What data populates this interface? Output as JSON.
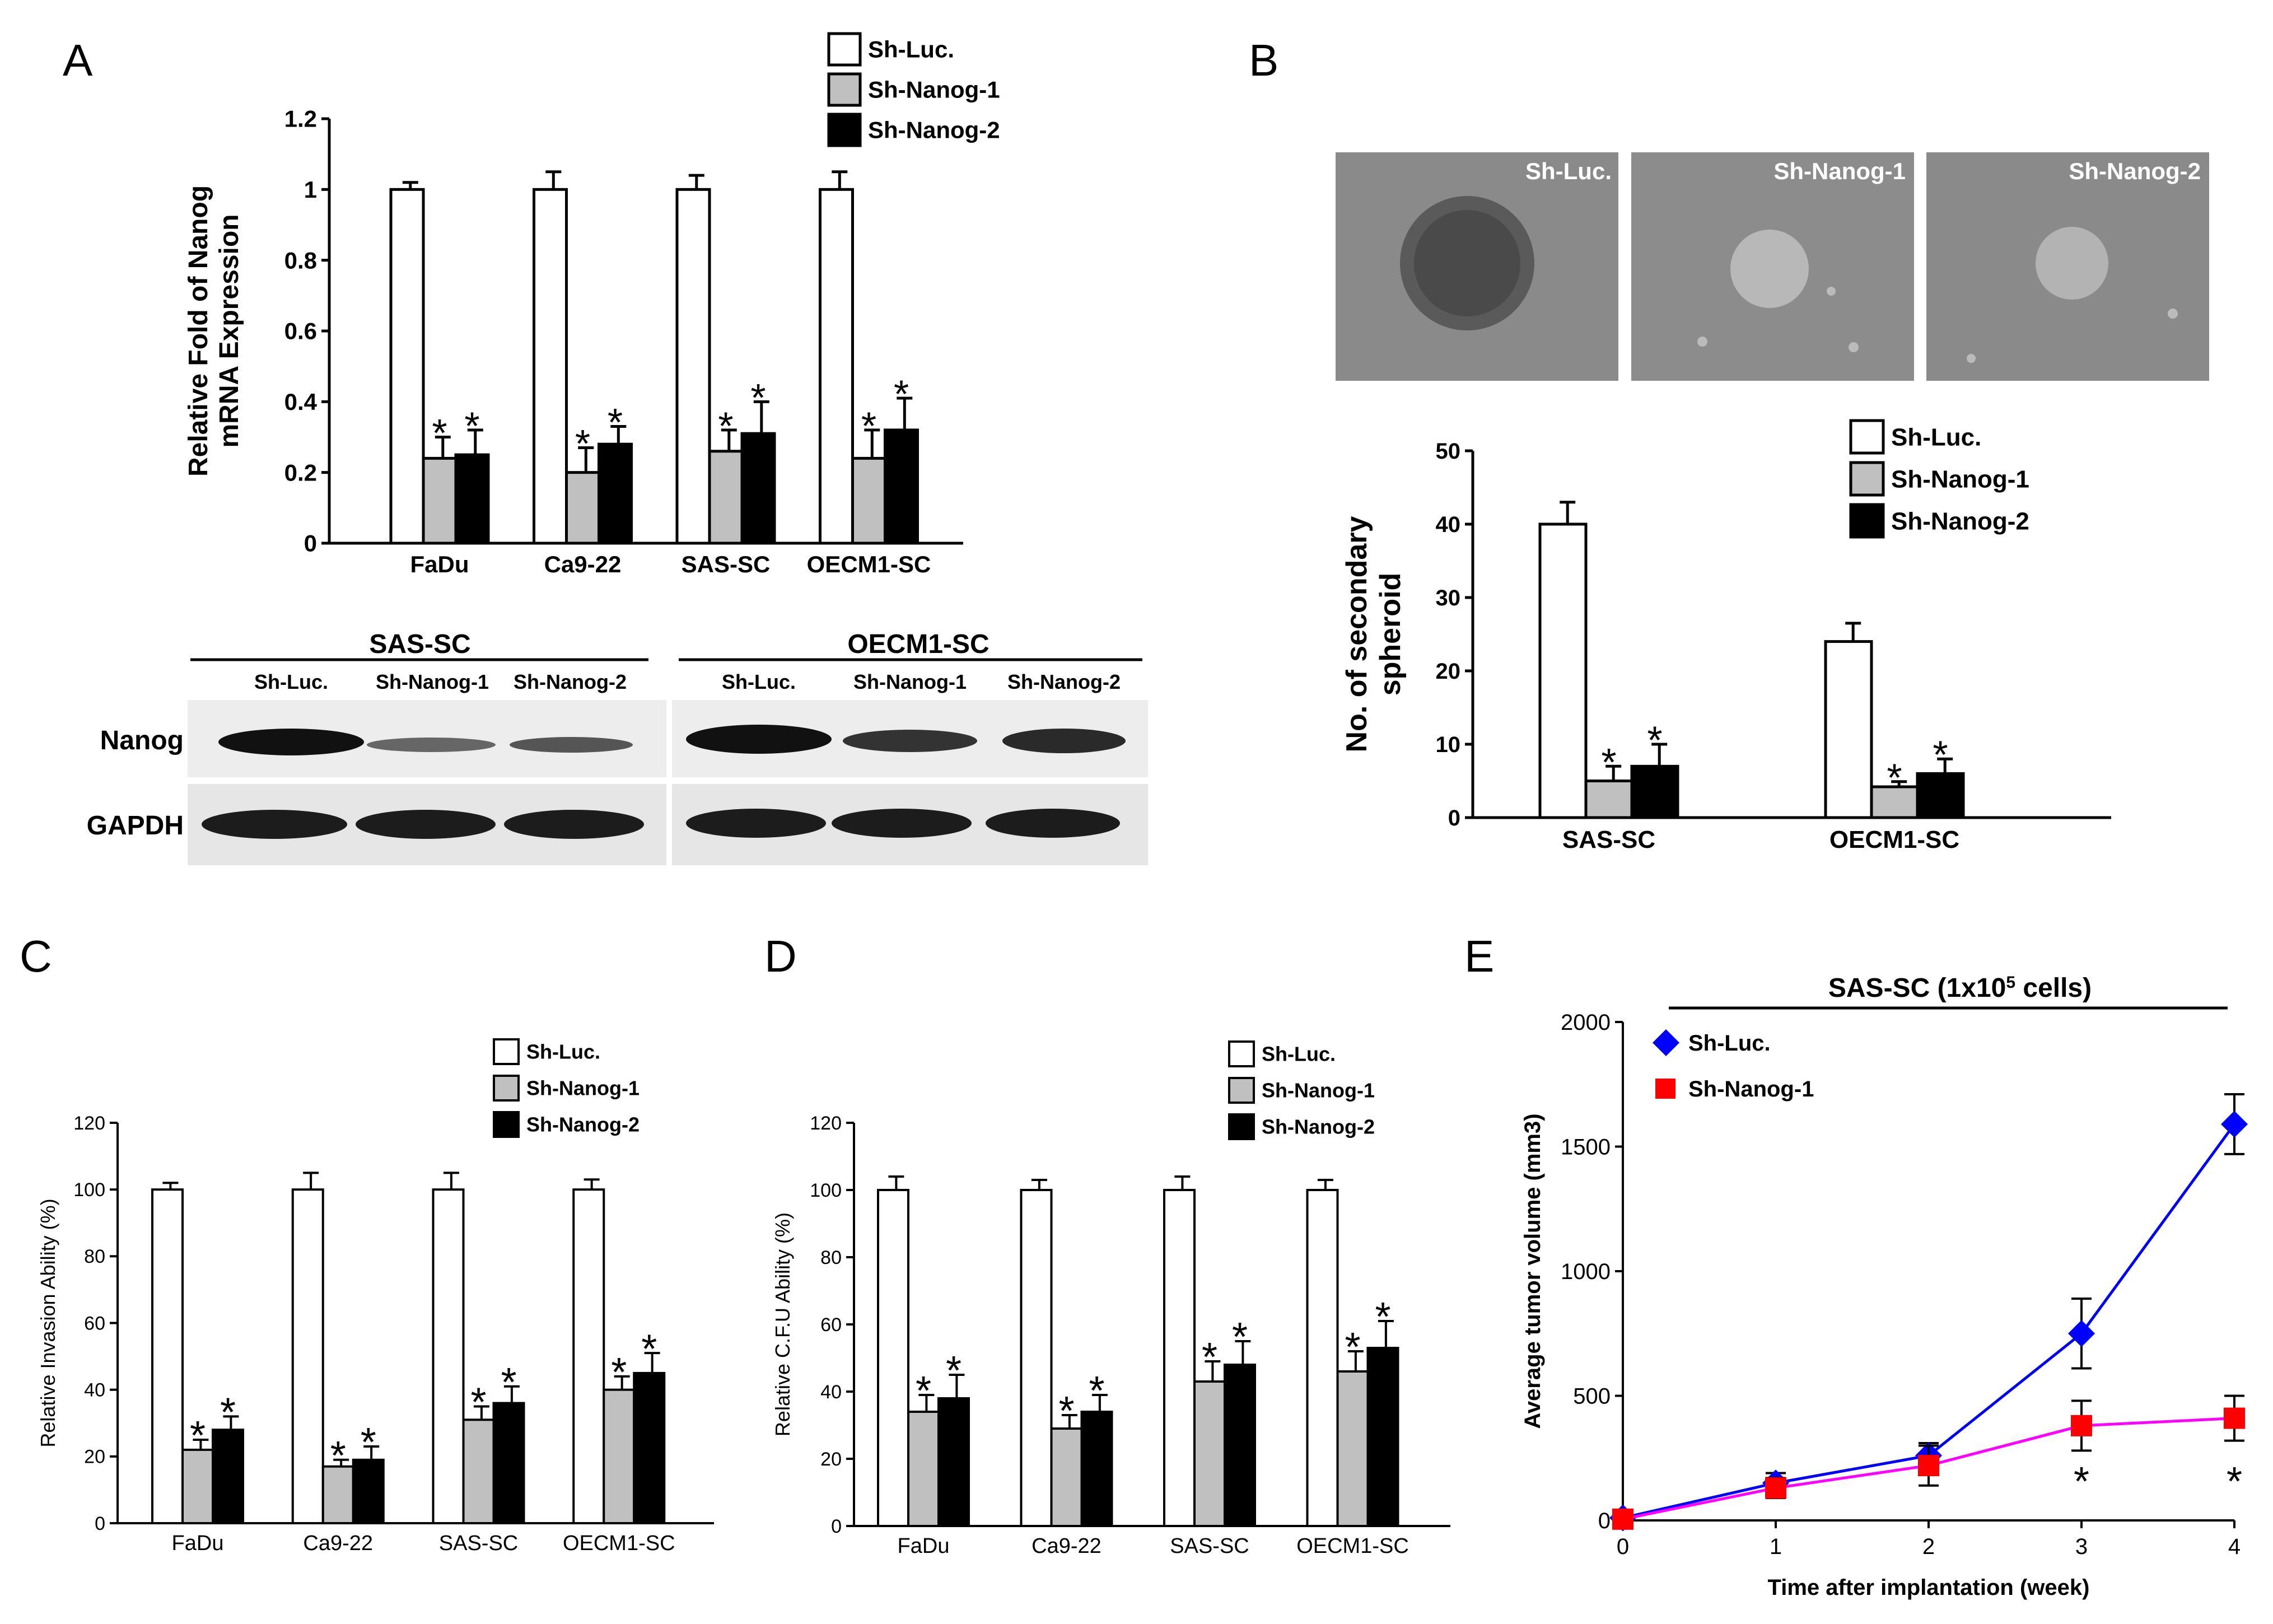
{
  "panel_letters": {
    "a": "A",
    "b": "B",
    "c": "C",
    "d": "D",
    "e": "E"
  },
  "legend3": [
    "Sh-Luc.",
    "Sh-Nanog-1",
    "Sh-Nanog-2"
  ],
  "colors": {
    "sh_luc": "#ffffff",
    "sh_nanog_1": "#c0c0c0",
    "sh_nanog_2": "#000000",
    "line_luc": "#0000ff",
    "line_nanog": "#ff00ff",
    "marker_nanog": "#ff0000"
  },
  "star": "*",
  "western": {
    "groups": [
      "SAS-SC",
      "OECM1-SC"
    ],
    "lanes": [
      "Sh-Luc.",
      "Sh-Nanog-1",
      "Sh-Nanog-2"
    ],
    "rows": [
      "Nanog",
      "GAPDH"
    ]
  },
  "photos": [
    "Sh-Luc.",
    "Sh-Nanog-1",
    "Sh-Nanog-2"
  ],
  "chart_data": [
    {
      "id": "A",
      "type": "bar",
      "categories": [
        "FaDu",
        "Ca9-22",
        "SAS-SC",
        "OECM1-SC"
      ],
      "series": [
        {
          "name": "Sh-Luc.",
          "values": [
            1.0,
            1.0,
            1.0,
            1.0
          ],
          "errors": [
            0.02,
            0.05,
            0.04,
            0.05
          ]
        },
        {
          "name": "Sh-Nanog-1",
          "values": [
            0.24,
            0.2,
            0.26,
            0.24
          ],
          "errors": [
            0.06,
            0.07,
            0.06,
            0.08
          ]
        },
        {
          "name": "Sh-Nanog-2",
          "values": [
            0.25,
            0.28,
            0.31,
            0.32
          ],
          "errors": [
            0.07,
            0.05,
            0.09,
            0.09
          ]
        }
      ],
      "ylabel": [
        "Relative Fold  of Nanog",
        "mRNA Expression"
      ],
      "ylim": [
        0,
        1.2
      ],
      "yticks": [
        "0",
        "0.2",
        "0.4",
        "0.6",
        "0.8",
        "1",
        "1.2"
      ],
      "significant": "Sh-Nanog-1 and Sh-Nanog-2 in every group",
      "legend": "top-right"
    },
    {
      "id": "B",
      "type": "bar",
      "categories": [
        "SAS-SC",
        "OECM1-SC"
      ],
      "series": [
        {
          "name": "Sh-Luc.",
          "values": [
            40,
            24
          ],
          "errors": [
            3,
            2.5
          ]
        },
        {
          "name": "Sh-Nanog-1",
          "values": [
            5,
            4.2
          ],
          "errors": [
            2,
            0.7
          ]
        },
        {
          "name": "Sh-Nanog-2",
          "values": [
            7,
            6
          ],
          "errors": [
            3,
            2
          ]
        }
      ],
      "ylabel": [
        "No. of secondary",
        "spheroid"
      ],
      "ylim": [
        0,
        50
      ],
      "yticks": [
        "0",
        "10",
        "20",
        "30",
        "40",
        "50"
      ],
      "legend": "top-right"
    },
    {
      "id": "C",
      "type": "bar",
      "categories": [
        "FaDu",
        "Ca9-22",
        "SAS-SC",
        "OECM1-SC"
      ],
      "series": [
        {
          "name": "Sh-Luc.",
          "values": [
            100,
            100,
            100,
            100
          ],
          "errors": [
            2,
            5,
            5,
            3
          ]
        },
        {
          "name": "Sh-Nanog-1",
          "values": [
            22,
            17,
            31,
            40
          ],
          "errors": [
            3,
            2,
            4,
            4
          ]
        },
        {
          "name": "Sh-Nanog-2",
          "values": [
            28,
            19,
            36,
            45
          ],
          "errors": [
            4,
            4,
            5,
            6
          ]
        }
      ],
      "ylabel": "Relative Invasion Ability (%)",
      "ylim": [
        0,
        120
      ],
      "yticks": [
        "0",
        "20",
        "40",
        "60",
        "80",
        "100",
        "120"
      ],
      "legend": "top-right"
    },
    {
      "id": "D",
      "type": "bar",
      "categories": [
        "FaDu",
        "Ca9-22",
        "SAS-SC",
        "OECM1-SC"
      ],
      "series": [
        {
          "name": "Sh-Luc.",
          "values": [
            100,
            100,
            100,
            100
          ],
          "errors": [
            4,
            3,
            4,
            3
          ]
        },
        {
          "name": "Sh-Nanog-1",
          "values": [
            34,
            29,
            43,
            46
          ],
          "errors": [
            5,
            4,
            6,
            6
          ]
        },
        {
          "name": "Sh-Nanog-2",
          "values": [
            38,
            34,
            48,
            53
          ],
          "errors": [
            7,
            5,
            7,
            8
          ]
        }
      ],
      "ylabel": "Relative C.F.U Ability (%)",
      "ylim": [
        0,
        120
      ],
      "yticks": [
        "0",
        "20",
        "40",
        "60",
        "80",
        "100",
        "120"
      ],
      "legend": "top-right"
    },
    {
      "id": "E",
      "type": "line",
      "title": "SAS-SC (1x10^5 cells)",
      "title_parts": [
        "SAS-SC (1x10",
        "5",
        " cells)"
      ],
      "x": [
        0,
        1,
        2,
        3,
        4
      ],
      "xticks": [
        "0",
        "1",
        "2",
        "3",
        "4"
      ],
      "series": [
        {
          "name": "Sh-Luc.",
          "values": [
            10,
            150,
            260,
            750,
            1590
          ],
          "errors": [
            20,
            40,
            50,
            140,
            120
          ]
        },
        {
          "name": "Sh-Nanog-1",
          "values": [
            5,
            130,
            220,
            380,
            410
          ],
          "errors": [
            20,
            40,
            80,
            100,
            90
          ]
        }
      ],
      "significant_x": [
        3,
        4
      ],
      "xlabel": "Time after implantation (week)",
      "ylabel": "Average tumor volume (mm3)",
      "ylim": [
        0,
        2000
      ],
      "yticks": [
        "0",
        "500",
        "1000",
        "1500",
        "2000"
      ],
      "legend": "top-left"
    }
  ]
}
